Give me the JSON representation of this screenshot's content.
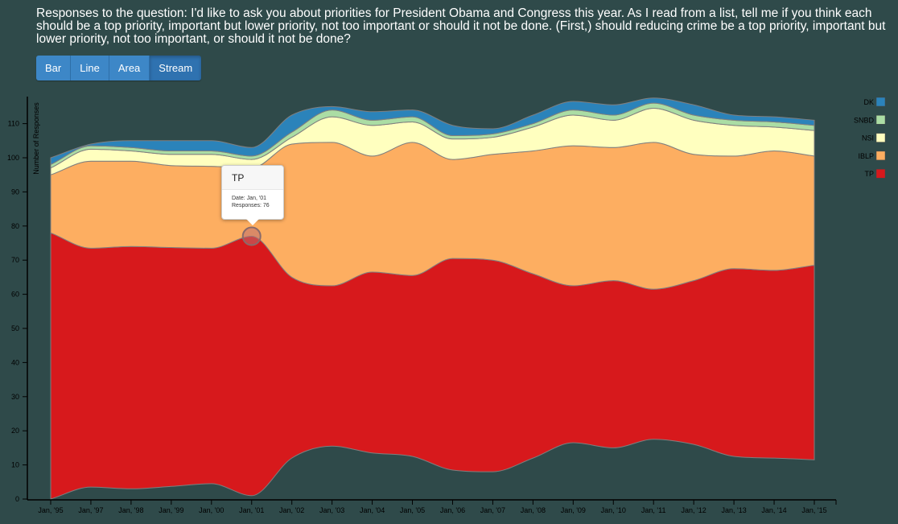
{
  "title": "Responses to the question: I'd like to ask you about priorities for President Obama and Congress this year. As I read from a list, tell me if you think each should be a top priority, important but lower priority, not too important or should it not be done. (First,) should reducing crime be a top priority, important but lower priority, not too important, or should it not be done?",
  "toolbar": {
    "bar_label": "Bar",
    "line_label": "Line",
    "area_label": "Area",
    "stream_label": "Stream",
    "active": "Stream"
  },
  "tooltip": {
    "series": "TP",
    "date_line": "Date: Jan, '01",
    "responses_line": "Responses: 76"
  },
  "chart_data": {
    "type": "area",
    "mode": "stream",
    "ylabel": "Number of Responses",
    "ylim": [
      0,
      118
    ],
    "yticks": [
      0,
      10,
      20,
      30,
      40,
      50,
      60,
      70,
      80,
      90,
      100,
      110
    ],
    "x": [
      "Jan, '95",
      "Jan, '97",
      "Jan, '98",
      "Jan, '99",
      "Jan, '00",
      "Jan, '01",
      "Jan, '02",
      "Jan, '03",
      "Jan, '04",
      "Jan, '05",
      "Jan, '06",
      "Jan, '07",
      "Jan, '08",
      "Jan, '09",
      "Jan, '10",
      "Jan, '11",
      "Jan, '12",
      "Jan, '13",
      "Jan, '14",
      "Jan, '15"
    ],
    "baseline": [
      0,
      3.5,
      3,
      3.7,
      4.5,
      1,
      12,
      15.5,
      13.5,
      12.5,
      8.5,
      8,
      12,
      16.5,
      15,
      17.5,
      16,
      12.5,
      12,
      11.5
    ],
    "series": [
      {
        "name": "TP",
        "color": "#d7191c",
        "values": [
          78,
          70,
          71,
          70,
          69,
          76,
          53,
          47,
          53,
          53,
          62,
          62,
          54,
          46,
          49,
          44,
          48,
          55,
          55,
          57
        ]
      },
      {
        "name": "IBLP",
        "color": "#fdae61",
        "values": [
          17,
          25.5,
          25,
          24,
          24,
          20,
          39,
          42,
          34,
          39,
          29,
          31,
          36,
          41,
          39,
          43,
          37,
          33,
          35,
          32
        ]
      },
      {
        "name": "NSI",
        "color": "#ffffbf",
        "values": [
          2,
          3.5,
          3,
          3.3,
          3.5,
          2.5,
          2,
          7.5,
          9,
          6,
          6,
          5,
          7,
          9,
          8,
          10,
          10,
          9,
          7,
          7.5
        ]
      },
      {
        "name": "SNBD",
        "color": "#abdda4",
        "values": [
          1,
          1,
          1,
          1,
          1,
          1,
          1.5,
          2,
          1.5,
          1.5,
          1,
          1,
          1,
          1.5,
          1.5,
          1.5,
          1.5,
          1.5,
          1.5,
          1.5
        ]
      },
      {
        "name": "DK",
        "color": "#2b83ba",
        "values": [
          2,
          0.5,
          2,
          3,
          3,
          2.5,
          5,
          1,
          2.5,
          2,
          3,
          1.5,
          2.5,
          2.5,
          3,
          1.5,
          3,
          1.5,
          1.5,
          1.5
        ]
      }
    ],
    "legend_position": "top-right",
    "legend_order": [
      "DK",
      "SNBD",
      "NSI",
      "IBLP",
      "TP"
    ],
    "highlight": {
      "series": "TP",
      "x": "Jan, '01"
    }
  }
}
